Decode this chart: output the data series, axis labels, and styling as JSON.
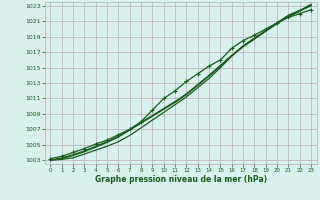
{
  "title": "Graphe pression niveau de la mer (hPa)",
  "bg_color": "#d8f0ee",
  "grid_color": "#c0a8b8",
  "line_color": "#1a5c1a",
  "marker_color": "#1a5c1a",
  "xlim": [
    -0.5,
    23.5
  ],
  "ylim": [
    1002.5,
    1023.5
  ],
  "yticks": [
    1003,
    1005,
    1007,
    1009,
    1011,
    1013,
    1015,
    1017,
    1019,
    1021,
    1023
  ],
  "xticks": [
    0,
    1,
    2,
    3,
    4,
    5,
    6,
    7,
    8,
    9,
    10,
    11,
    12,
    13,
    14,
    15,
    16,
    17,
    18,
    19,
    20,
    21,
    22,
    23
  ],
  "series": [
    {
      "y": [
        1003.0,
        1003.1,
        1003.3,
        1003.8,
        1004.3,
        1004.8,
        1005.4,
        1006.2,
        1007.2,
        1008.2,
        1009.2,
        1010.2,
        1011.2,
        1012.4,
        1013.6,
        1015.0,
        1016.5,
        1017.8,
        1018.8,
        1019.8,
        1020.8,
        1021.8,
        1022.4,
        1023.0
      ],
      "marker": false,
      "lw": 0.9
    },
    {
      "y": [
        1003.0,
        1003.2,
        1003.6,
        1004.1,
        1004.7,
        1005.3,
        1006.0,
        1006.9,
        1007.8,
        1008.7,
        1009.6,
        1010.5,
        1011.5,
        1012.7,
        1013.9,
        1015.2,
        1016.5,
        1017.7,
        1018.7,
        1019.7,
        1020.7,
        1021.6,
        1022.3,
        1023.1
      ],
      "marker": false,
      "lw": 0.9
    },
    {
      "y": [
        1003.0,
        1003.3,
        1003.7,
        1004.2,
        1004.8,
        1005.4,
        1006.1,
        1007.0,
        1007.9,
        1008.8,
        1009.7,
        1010.6,
        1011.6,
        1012.8,
        1014.0,
        1015.3,
        1016.6,
        1017.8,
        1018.8,
        1019.8,
        1020.8,
        1021.7,
        1022.4,
        1023.2
      ],
      "marker": false,
      "lw": 0.9
    },
    {
      "y": [
        1003.2,
        1003.5,
        1004.0,
        1004.5,
        1005.1,
        1005.6,
        1006.3,
        1007.0,
        1008.0,
        1009.5,
        1011.0,
        1012.0,
        1013.2,
        1014.2,
        1015.2,
        1016.0,
        1017.5,
        1018.5,
        1019.2,
        1020.0,
        1020.8,
        1021.5,
        1022.0,
        1022.5
      ],
      "marker": true,
      "lw": 0.9
    }
  ]
}
